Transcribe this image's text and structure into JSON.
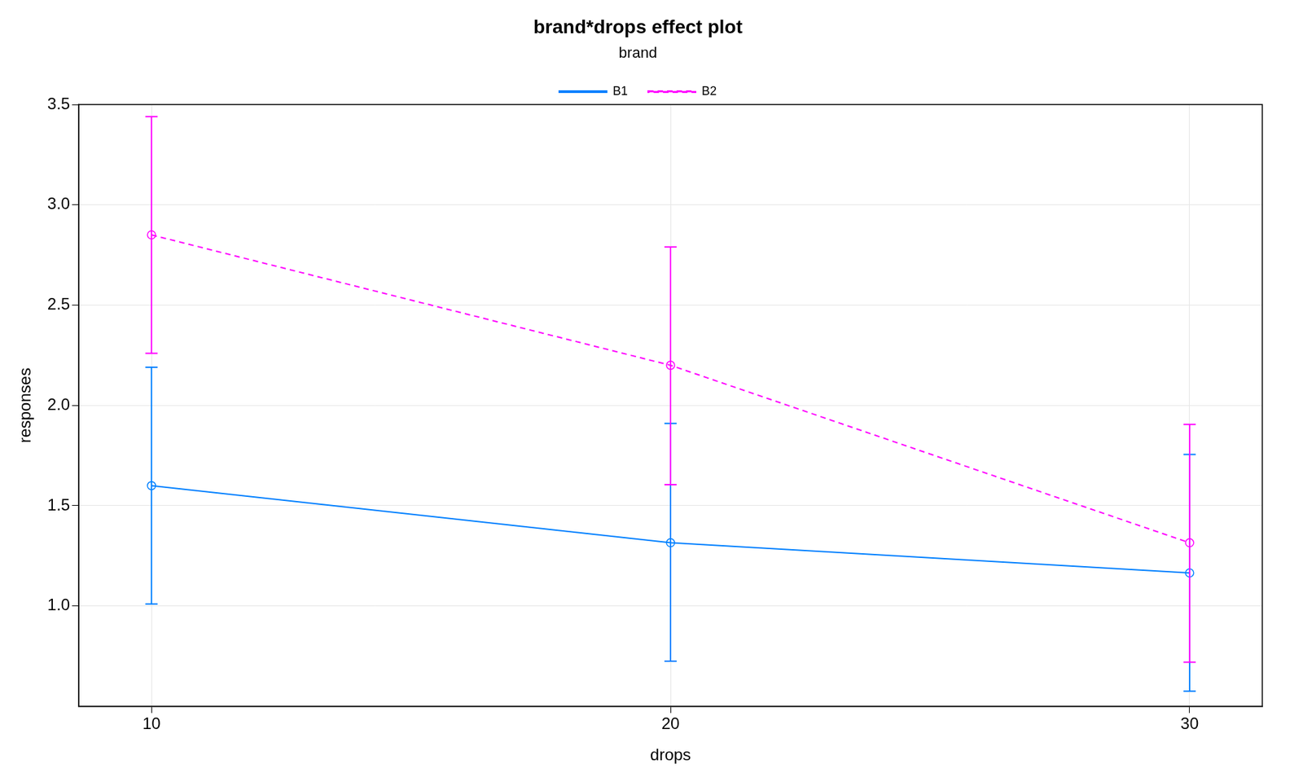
{
  "chart_data": {
    "type": "line",
    "title": "brand*drops effect plot",
    "x_label": "drops",
    "y_label": "responses",
    "legend_title": "brand",
    "legend": "top",
    "grid": true,
    "x": [
      10,
      20,
      30
    ],
    "xlim": [
      8.6,
      31.4
    ],
    "xticks": [
      10,
      20,
      30
    ],
    "ylim": [
      0.5,
      3.5
    ],
    "yticks": [
      {
        "value": 1,
        "label": "1.0"
      },
      1.5,
      {
        "value": 2,
        "label": "2.0"
      },
      2.5,
      {
        "value": 3,
        "label": "3.0"
      },
      3.5
    ],
    "series": [
      {
        "name": "B1",
        "color": "#0080ff",
        "line_style": "solid",
        "marker": "circle",
        "values": [
          1.6,
          1.315,
          1.165
        ],
        "lower": [
          1.01,
          0.725,
          0.575
        ],
        "upper": [
          2.19,
          1.91,
          1.755
        ]
      },
      {
        "name": "B2",
        "color": "#ff00ff",
        "line_style": "dashed",
        "marker": "circle",
        "values": [
          2.85,
          2.2,
          1.315
        ],
        "lower": [
          2.26,
          1.605,
          0.72
        ],
        "upper": [
          3.44,
          2.79,
          1.905
        ]
      }
    ]
  }
}
